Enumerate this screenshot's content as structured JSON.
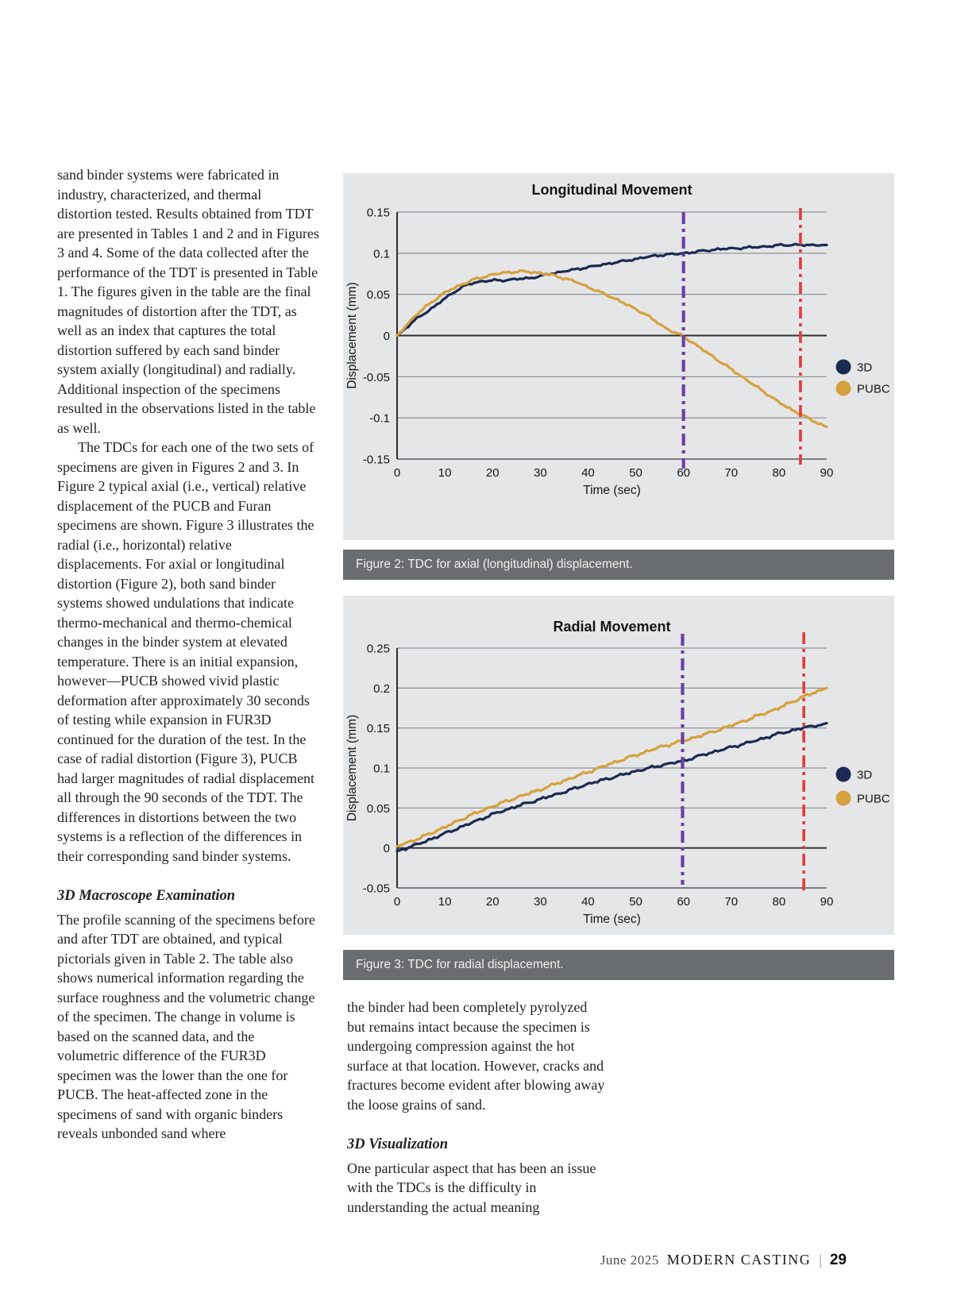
{
  "page": {
    "footer": {
      "issue": "June 2025",
      "magazine": "MODERN CASTING",
      "divider": "|",
      "page_number": "29"
    }
  },
  "article": {
    "left_column": {
      "para1": "sand binder systems were fabricated in industry, characterized, and thermal distortion tested. Results obtained from TDT are presented in Tables 1 and 2 and in Figures 3 and 4. Some of the data collected after the performance of the TDT is presented in Table 1. The figures given in the table are the final magnitudes of distortion after the TDT, as well as an index that captures the total distortion suffered by each sand binder system axially (longitudinal) and radially. Additional inspection of the specimens resulted in the observations listed in the table as well.",
      "para2": "The TDCs for each one of the two sets of specimens are given in Figures 2 and 3. In Figure 2 typical axial (i.e., vertical) relative displacement of the PUCB and Furan specimens are shown. Figure 3 illustrates the radial (i.e., horizontal) relative displacements. For axial or longitudinal distortion (Figure 2), both sand binder systems showed undulations that indicate thermo-mechanical and thermo-chemical changes in the binder system at elevated temperature. There is an initial expansion, however—PUCB showed vivid plastic deformation after approximately 30 seconds of testing while expansion in FUR3D continued for the duration of the test. In the case of radial distortion (Figure 3), PUCB had larger magnitudes of radial displacement all through the 90 seconds of the TDT. The differences in distortions between the two systems is a reflection of the differences in their corresponding sand binder systems.",
      "heading1": "3D Macroscope Examination",
      "para3": "The profile scanning of the specimens before and after TDT are obtained, and typical pictorials given in Table 2. The table also shows numerical information regarding the surface roughness and the volumetric change of the specimen. The change in volume is based on the scanned data, and the volumetric difference of the FUR3D specimen was the lower than the one for PUCB. The heat-affected zone in the specimens of sand with organic binders reveals unbonded sand where"
    },
    "middle_column": {
      "para4": "the binder had been completely pyrolyzed but remains intact because the specimen is undergoing compression against the hot surface at that location. However, cracks and fractures become evident after blowing away the loose grains of sand.",
      "heading2": "3D Visualization",
      "para5": "One particular aspect that has been an issue with the TDCs is the difficulty in understanding the actual meaning"
    }
  },
  "figures": [
    {
      "caption": "Figure 2: TDC for axial (longitudinal) displacement."
    },
    {
      "caption": "Figure 3: TDC for radial displacement."
    }
  ],
  "colors": {
    "navy_series": "#1c2a52",
    "gold_series": "#d5a13c",
    "purple_reference": "#6b3fa5",
    "red_reference": "#e23b3b",
    "panel_background": "#e5e6e8",
    "caption_background": "#6a6d6f"
  },
  "chart_data": [
    {
      "type": "line",
      "title": "Longitudinal Movement",
      "xlabel": "Time (sec)",
      "ylabel": "Displacement (mm)",
      "xlim": [
        0,
        90
      ],
      "ylim": [
        -0.15,
        0.15
      ],
      "xticks": [
        0,
        10,
        20,
        30,
        40,
        50,
        60,
        70,
        80,
        90
      ],
      "ytick_values": [
        0.15,
        0.1,
        0.05,
        0,
        -0.05,
        -0.1,
        -0.15
      ],
      "ytick_labels": [
        "0.15",
        "0.1",
        "0.05",
        "0",
        "-0.05",
        "-0.1",
        "-0.15"
      ],
      "grid": true,
      "legend_position": "right",
      "series": [
        {
          "name": "3D",
          "color": "#1c2a52",
          "x": [
            0,
            2,
            4,
            6,
            8,
            10,
            12,
            14,
            16,
            18,
            20,
            22,
            24,
            26,
            28,
            30,
            32,
            34,
            36,
            38,
            40,
            42,
            44,
            46,
            48,
            50,
            52,
            54,
            56,
            58,
            60,
            62,
            64,
            66,
            68,
            70,
            72,
            74,
            76,
            78,
            80,
            82,
            84,
            86,
            88,
            90
          ],
          "y": [
            0,
            0.01,
            0.02,
            0.028,
            0.036,
            0.045,
            0.053,
            0.06,
            0.064,
            0.066,
            0.067,
            0.067,
            0.068,
            0.069,
            0.07,
            0.072,
            0.075,
            0.077,
            0.079,
            0.081,
            0.083,
            0.085,
            0.087,
            0.089,
            0.091,
            0.093,
            0.095,
            0.097,
            0.098,
            0.099,
            0.1,
            0.101,
            0.103,
            0.104,
            0.105,
            0.106,
            0.106,
            0.107,
            0.108,
            0.108,
            0.11,
            0.11,
            0.11,
            0.11,
            0.11,
            0.11
          ]
        },
        {
          "name": "PUBC",
          "color": "#d5a13c",
          "x": [
            0,
            2,
            4,
            6,
            8,
            10,
            12,
            14,
            16,
            18,
            20,
            22,
            24,
            26,
            28,
            30,
            32,
            34,
            36,
            38,
            40,
            42,
            44,
            46,
            48,
            50,
            52,
            54,
            56,
            58,
            60,
            62,
            64,
            66,
            68,
            70,
            72,
            74,
            76,
            78,
            80,
            82,
            84,
            86,
            88,
            90
          ],
          "y": [
            0,
            0.013,
            0.025,
            0.035,
            0.044,
            0.052,
            0.058,
            0.063,
            0.068,
            0.071,
            0.074,
            0.076,
            0.077,
            0.078,
            0.077,
            0.076,
            0.074,
            0.071,
            0.068,
            0.064,
            0.059,
            0.054,
            0.049,
            0.044,
            0.038,
            0.032,
            0.026,
            0.018,
            0.01,
            0.004,
            -0.001,
            -0.009,
            -0.017,
            -0.025,
            -0.033,
            -0.041,
            -0.049,
            -0.057,
            -0.065,
            -0.073,
            -0.081,
            -0.088,
            -0.094,
            -0.1,
            -0.106,
            -0.111
          ]
        }
      ],
      "reference_lines": [
        {
          "x": 60,
          "color": "#6b3fa5",
          "style": "dash-dot"
        },
        {
          "x": 84.5,
          "color": "#e23b3b",
          "style": "dash-dot"
        }
      ]
    },
    {
      "type": "line",
      "title": "Radial Movement",
      "xlabel": "Time (sec)",
      "ylabel": "Displacement (mm)",
      "xlim": [
        0,
        90
      ],
      "ylim": [
        -0.05,
        0.25
      ],
      "xticks": [
        0,
        10,
        20,
        30,
        40,
        50,
        60,
        70,
        80,
        90
      ],
      "ytick_values": [
        0.25,
        0.2,
        0.15,
        0.1,
        0.05,
        0,
        -0.05
      ],
      "ytick_labels": [
        "0.25",
        "0.2",
        "0.15",
        "0.1",
        "0.05",
        "0",
        "-0.05"
      ],
      "grid": true,
      "legend_position": "right",
      "series": [
        {
          "name": "3D",
          "color": "#1c2a52",
          "x": [
            0,
            5,
            10,
            15,
            20,
            25,
            30,
            35,
            40,
            45,
            50,
            55,
            60,
            65,
            70,
            75,
            80,
            85,
            90
          ],
          "y": [
            -0.004,
            0.006,
            0.018,
            0.03,
            0.042,
            0.052,
            0.061,
            0.07,
            0.08,
            0.088,
            0.096,
            0.103,
            0.109,
            0.118,
            0.126,
            0.134,
            0.143,
            0.15,
            0.156
          ]
        },
        {
          "name": "PUBC",
          "color": "#d5a13c",
          "x": [
            0,
            5,
            10,
            15,
            20,
            25,
            30,
            35,
            40,
            45,
            50,
            55,
            60,
            65,
            70,
            75,
            80,
            85,
            90
          ],
          "y": [
            0.002,
            0.013,
            0.026,
            0.04,
            0.052,
            0.063,
            0.073,
            0.084,
            0.095,
            0.106,
            0.116,
            0.126,
            0.134,
            0.143,
            0.153,
            0.164,
            0.175,
            0.189,
            0.2
          ]
        }
      ],
      "reference_lines": [
        {
          "x": 59.8,
          "color": "#6b3fa5",
          "style": "dash-dot"
        },
        {
          "x": 85.2,
          "color": "#e23b3b",
          "style": "dash-dot"
        }
      ]
    }
  ]
}
